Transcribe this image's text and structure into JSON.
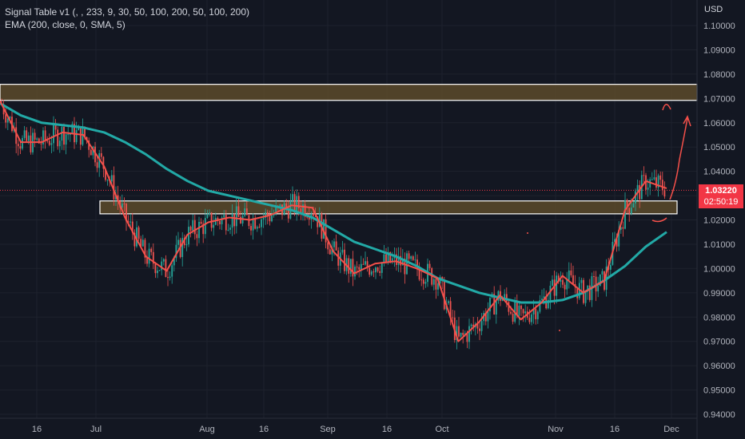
{
  "legend": {
    "line1": "Signal Table v1 (, , 233, 9, 30, 50, 100, 200, 50, 100, 200)",
    "line2": "EMA (200, close, 0, SMA, 5)"
  },
  "axis": {
    "currency": "USD",
    "price_labels": [
      "1.10000",
      "1.09000",
      "1.08000",
      "1.07000",
      "1.06000",
      "1.05000",
      "1.04000",
      "1.03000",
      "1.02000",
      "1.01000",
      "1.00000",
      "0.99000",
      "0.98000",
      "0.97000",
      "0.96000",
      "0.95000",
      "0.94000"
    ],
    "time_labels": [
      "16",
      "Jul",
      "Aug",
      "16",
      "Sep",
      "16",
      "Oct",
      "Nov",
      "16",
      "Dec"
    ]
  },
  "current_price": {
    "price": "1.03220",
    "countdown": "02:50:19"
  },
  "colors": {
    "background": "#131722",
    "candle_up": "#26a69a",
    "candle_down": "#ef5350",
    "ema_fast": "#f4504a",
    "ema_slow": "#22a9a6",
    "zone_fill": "#5c4a2a",
    "price_tag": "#f23645"
  },
  "chart_data": {
    "type": "candlestick",
    "ylim": [
      0.94,
      1.1
    ],
    "zones": [
      {
        "from": 1.0692,
        "to": 1.0758
      },
      {
        "from": 1.0225,
        "to": 1.0278
      }
    ],
    "price_line": 1.0322,
    "series": [
      {
        "name": "EMA (200, close, 0, SMA, 5)",
        "values": [
          1.068,
          1.063,
          1.06,
          1.059,
          1.058,
          1.056,
          1.052,
          1.047,
          1.041,
          1.036,
          1.032,
          1.03,
          1.028,
          1.026,
          1.024,
          1.021,
          1.016,
          1.011,
          1.008,
          1.005,
          1.001,
          0.996,
          0.993,
          0.99,
          0.988,
          0.986,
          0.986,
          0.987,
          0.99,
          0.995,
          1.001,
          1.009,
          1.015
        ]
      },
      {
        "values": [
          1.069,
          1.052,
          1.052,
          1.056,
          1.055,
          1.042,
          1.021,
          1.005,
          0.999,
          1.014,
          1.019,
          1.021,
          1.02,
          1.022,
          1.026,
          1.025,
          1.007,
          0.998,
          1.002,
          1.003,
          1.0,
          0.996,
          0.97,
          0.978,
          0.989,
          0.979,
          0.986,
          0.997,
          0.99,
          0.995,
          1.024,
          1.036,
          1.033
        ]
      }
    ],
    "annotations": [
      "target-arrow"
    ]
  }
}
